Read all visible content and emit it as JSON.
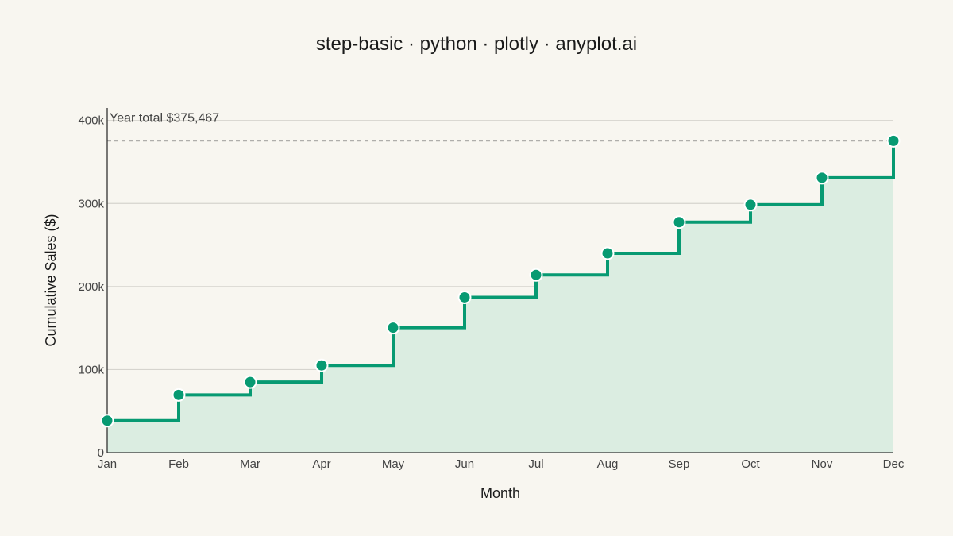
{
  "chart_data": {
    "type": "line",
    "line_shape": "step",
    "title": "step-basic · python · plotly · anyplot.ai",
    "xlabel": "Month",
    "ylabel": "Cumulative Sales ($)",
    "categories": [
      "Jan",
      "Feb",
      "Mar",
      "Apr",
      "May",
      "Jun",
      "Jul",
      "Aug",
      "Sep",
      "Oct",
      "Nov",
      "Dec"
    ],
    "series": [
      {
        "values": [
          38500,
          69500,
          85000,
          105000,
          150500,
          187000,
          214000,
          240000,
          277500,
          298500,
          331000,
          375467
        ]
      }
    ],
    "ylim": [
      0,
      415000
    ],
    "yticks": [
      0,
      100000,
      200000,
      300000,
      400000
    ],
    "ytick_labels": [
      "0",
      "100k",
      "200k",
      "300k",
      "400k"
    ],
    "grid": true,
    "fill": "area under step line",
    "reference_line": {
      "value": 375467,
      "style": "dashed",
      "label": "Year total $375,467"
    },
    "colors": {
      "background": "#F8F6F0",
      "line": "#079A72",
      "fill": "#DBEDE1",
      "grid": "#D6D4CE",
      "reference": "#666666"
    }
  }
}
